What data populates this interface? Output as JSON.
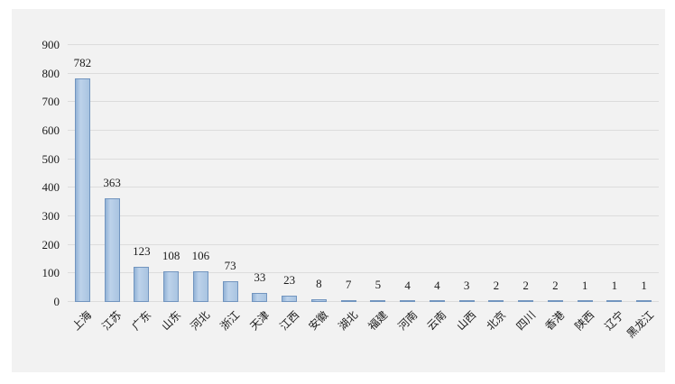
{
  "chart_data": {
    "type": "bar",
    "title": "",
    "xlabel": "",
    "ylabel": "",
    "categories": [
      "上海",
      "江苏",
      "广东",
      "山东",
      "河北",
      "浙江",
      "天津",
      "江西",
      "安徽",
      "湖北",
      "福建",
      "河南",
      "云南",
      "山西",
      "北京",
      "四川",
      "香港",
      "陕西",
      "辽宁",
      "黑龙江"
    ],
    "values": [
      782,
      363,
      123,
      108,
      106,
      73,
      33,
      23,
      8,
      7,
      5,
      4,
      4,
      3,
      2,
      2,
      2,
      1,
      1,
      1
    ],
    "data_labels_shown": true,
    "ylim": [
      0,
      900
    ],
    "y_ticks": [
      0,
      100,
      200,
      300,
      400,
      500,
      600,
      700,
      800,
      900
    ],
    "grid": true,
    "legend": false,
    "colors": {
      "bar_fill": "#a9c4e1",
      "bar_fill_light": "#bdd2ea",
      "bar_fill_dark": "#93b3d7",
      "bar_border": "#7295bf",
      "gridline": "#dcdcdc",
      "panel_bg": "#f2f2f2",
      "page_bg": "#ffffff",
      "text": "#1a1a1a"
    }
  }
}
